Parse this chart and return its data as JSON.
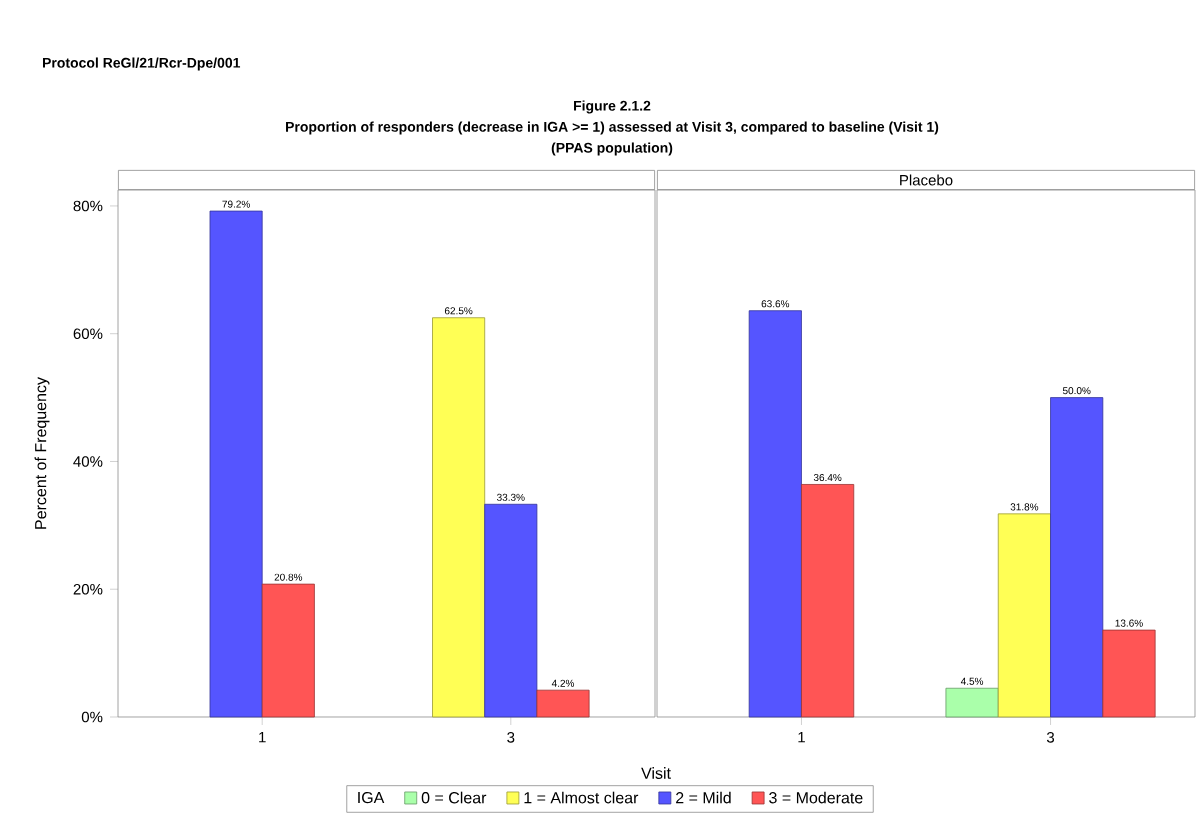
{
  "chart_data": [
    {
      "type": "bar",
      "title": "Figure 2.1.2",
      "subtitle": "Proportion of responders (decrease in IGA >= 1) assessed at Visit 3, compared to baseline (Visit 1)",
      "annotations": [
        "Protocol ReGl/21/Rcr-Dpe/001",
        "(PPAS population)"
      ],
      "xlabel": "Visit",
      "ylabel": "Percent of Frequency",
      "legend_title": "IGA",
      "legend": "bottom",
      "categories": [
        "1",
        "3"
      ],
      "ylim": [
        0,
        82.5
      ],
      "yticks": [
        {
          "value": 0,
          "label": "0%"
        },
        {
          "value": 20,
          "label": "20%"
        },
        {
          "value": 40,
          "label": "40%"
        },
        {
          "value": 60,
          "label": "60%"
        },
        {
          "value": 80,
          "label": "80%"
        }
      ],
      "series": [
        {
          "name": "0 = Clear",
          "color": "#aaffaa",
          "values": [
            null,
            null
          ],
          "value_labels": [
            null,
            null
          ]
        },
        {
          "name": "1 = Almost clear",
          "color": "#ffff55",
          "values": [
            null,
            62.5
          ],
          "value_labels": [
            null,
            "62.5%"
          ]
        },
        {
          "name": "2 = Mild",
          "color": "#5555ff",
          "values": [
            79.2,
            33.3
          ],
          "value_labels": [
            "79.2%",
            "33.3%"
          ]
        },
        {
          "name": "3 = Moderate",
          "color": "#ff5555",
          "values": [
            20.8,
            4.2
          ],
          "value_labels": [
            "20.8%",
            "4.2%"
          ]
        }
      ]
    },
    {
      "type": "bar",
      "title": "Placebo",
      "categories": [
        "1",
        "3"
      ],
      "ylim": [
        0,
        82.5
      ],
      "tick_labels": "x",
      "series": [
        {
          "color": "#aaffaa",
          "values": [
            null,
            4.5
          ],
          "value_labels": [
            null,
            "4.5%"
          ]
        },
        {
          "color": "#ffff55",
          "values": [
            null,
            31.8
          ],
          "value_labels": [
            null,
            "31.8%"
          ]
        },
        {
          "color": "#5555ff",
          "values": [
            63.6,
            50.0
          ],
          "value_labels": [
            "63.6%",
            "50.0%"
          ]
        },
        {
          "color": "#ff5555",
          "values": [
            36.4,
            13.6
          ],
          "value_labels": [
            "36.4%",
            "13.6%"
          ]
        }
      ]
    }
  ]
}
